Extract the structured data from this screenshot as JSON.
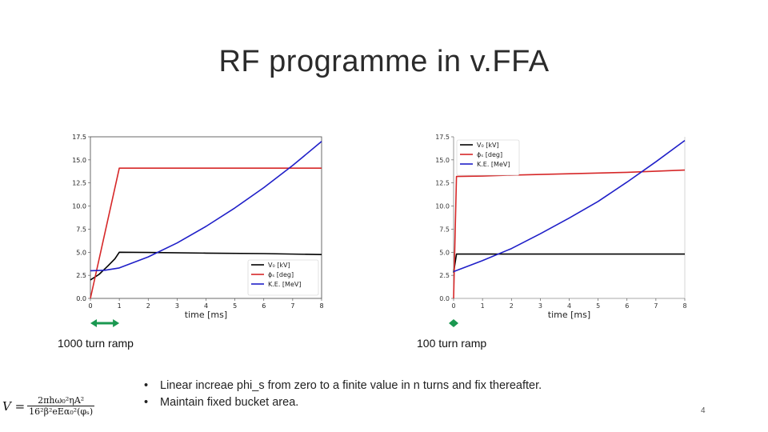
{
  "slide": {
    "title": "RF programme in v.FFA",
    "page_number": "4",
    "bullets": [
      "Linear increae phi_s from zero to a finite value in n turns and fix thereafter.",
      "Maintain fixed bucket area."
    ],
    "bullet_glyph": "•",
    "formula": {
      "lhs": "V =",
      "numerator": "2πhω₀²ηA²",
      "denominator": "16²β²eEα₀²(φₛ)"
    }
  },
  "colors": {
    "v0": "#000000",
    "phis": "#d62728",
    "ke": "#1f1fc8",
    "arrow": "#1a9850"
  },
  "chart_data": [
    {
      "type": "line",
      "caption": "1000 turn ramp",
      "xlabel": "time [ms]",
      "ylabel": "",
      "xlim": [
        0,
        8
      ],
      "ylim": [
        0,
        17.5
      ],
      "x_ticks": [
        "0",
        "1",
        "2",
        "3",
        "4",
        "5",
        "6",
        "7",
        "8"
      ],
      "y_ticks": [
        "0.0",
        "2.5",
        "5.0",
        "7.5",
        "10.0",
        "12.5",
        "15.0",
        "17.5"
      ],
      "legend_position": "bottom-right",
      "ramp_end_ms": 1.0,
      "series": [
        {
          "name": "V₀ [kV]",
          "color": "#000000",
          "x": [
            0,
            0.3,
            0.6,
            0.85,
            1,
            2,
            4,
            6,
            8
          ],
          "y": [
            2.0,
            2.6,
            3.5,
            4.3,
            5.0,
            4.97,
            4.9,
            4.85,
            4.75
          ]
        },
        {
          "name": "ϕₛ [deg]",
          "color": "#d62728",
          "x": [
            0,
            1,
            2,
            4,
            6,
            8
          ],
          "y": [
            0,
            14.1,
            14.1,
            14.1,
            14.1,
            14.1
          ]
        },
        {
          "name": "K.E. [MeV]",
          "color": "#1f1fc8",
          "x": [
            0,
            0.5,
            1,
            1.5,
            2,
            3,
            4,
            5,
            6,
            7,
            8
          ],
          "y": [
            3.0,
            3.05,
            3.3,
            3.9,
            4.5,
            6.0,
            7.8,
            9.8,
            12.0,
            14.4,
            17.0
          ]
        }
      ]
    },
    {
      "type": "line",
      "caption": "100 turn ramp",
      "xlabel": "time [ms]",
      "ylabel": "",
      "xlim": [
        0,
        8
      ],
      "ylim": [
        0,
        17.5
      ],
      "x_ticks": [
        "0",
        "1",
        "2",
        "3",
        "4",
        "5",
        "6",
        "7",
        "8"
      ],
      "y_ticks": [
        "0.0",
        "2.5",
        "5.0",
        "7.5",
        "10.0",
        "12.5",
        "15.0",
        "17.5"
      ],
      "legend_position": "top-left",
      "ramp_end_ms": 0.1,
      "series": [
        {
          "name": "V₀ [kV]",
          "color": "#000000",
          "x": [
            0,
            0.1,
            1,
            4,
            8
          ],
          "y": [
            2.8,
            4.8,
            4.8,
            4.8,
            4.8
          ]
        },
        {
          "name": "ϕₛ [deg]",
          "color": "#d62728",
          "x": [
            0,
            0.1,
            1,
            2,
            4,
            6,
            8
          ],
          "y": [
            0,
            13.2,
            13.25,
            13.35,
            13.5,
            13.65,
            13.9
          ]
        },
        {
          "name": "K.E. [MeV]",
          "color": "#1f1fc8",
          "x": [
            0,
            0.5,
            1,
            2,
            3,
            4,
            5,
            6,
            7,
            8
          ],
          "y": [
            2.9,
            3.5,
            4.1,
            5.4,
            7.0,
            8.7,
            10.5,
            12.6,
            14.8,
            17.1
          ]
        }
      ]
    }
  ]
}
